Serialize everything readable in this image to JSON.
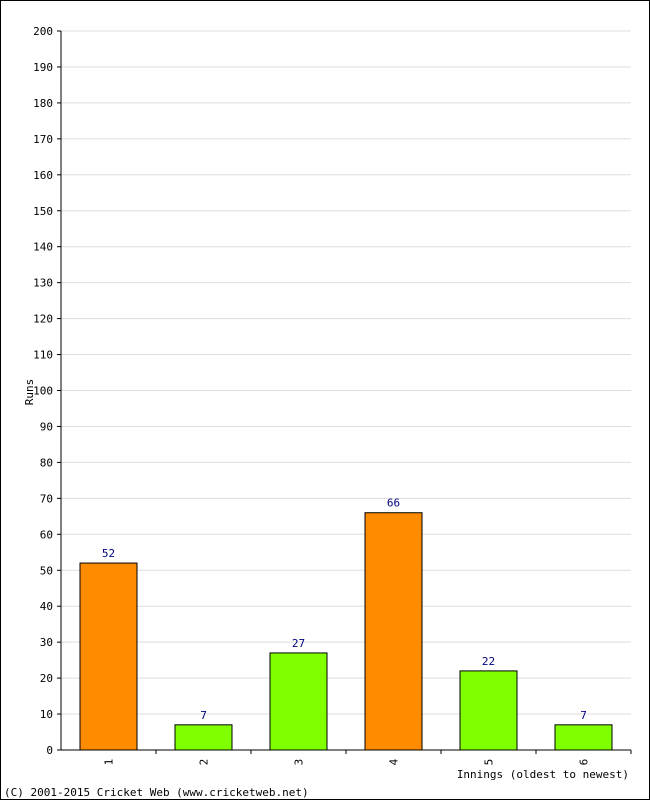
{
  "chart_data": {
    "type": "bar",
    "xlabel": "Innings (oldest to newest)",
    "ylabel": "Runs",
    "ylim": [
      0,
      200
    ],
    "ytick_step": 10,
    "grid": true,
    "categories": [
      "1",
      "2",
      "3",
      "4",
      "5",
      "6"
    ],
    "values": [
      52,
      7,
      27,
      66,
      22,
      7
    ],
    "bar_colors": [
      "#ff8c00",
      "#80ff00",
      "#80ff00",
      "#ff8c00",
      "#80ff00",
      "#80ff00"
    ],
    "value_labels": [
      "52",
      "7",
      "27",
      "66",
      "22",
      "7"
    ]
  },
  "footer": {
    "copyright": "(C) 2001-2015 Cricket Web (www.cricketweb.net)"
  },
  "colors": {
    "grid": "#dddddd",
    "axis": "#000000",
    "value_label": "#000080"
  }
}
